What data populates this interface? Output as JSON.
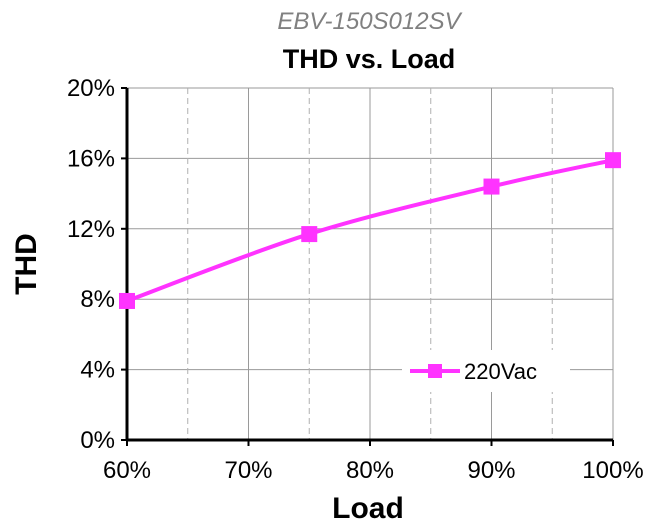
{
  "chart_data": {
    "type": "line",
    "subtitle": "EBV-150S012SV",
    "title": "THD vs. Load",
    "xlabel": "Load",
    "ylabel": "THD",
    "x": [
      60,
      75,
      90,
      100
    ],
    "series": [
      {
        "name": "220Vac",
        "values": [
          7.9,
          11.7,
          14.4,
          15.9
        ],
        "color": "#ff33ff"
      }
    ],
    "xlim": [
      60,
      100
    ],
    "ylim": [
      0,
      20
    ],
    "x_ticks": [
      60,
      70,
      80,
      90,
      100
    ],
    "x_tick_labels": [
      "60%",
      "70%",
      "80%",
      "90%",
      "100%"
    ],
    "y_ticks": [
      0,
      4,
      8,
      12,
      16,
      20
    ],
    "y_tick_labels": [
      "0%",
      "4%",
      "8%",
      "12%",
      "16%",
      "20%"
    ],
    "grid": true,
    "legend": "bottom-right",
    "marker": "square"
  }
}
